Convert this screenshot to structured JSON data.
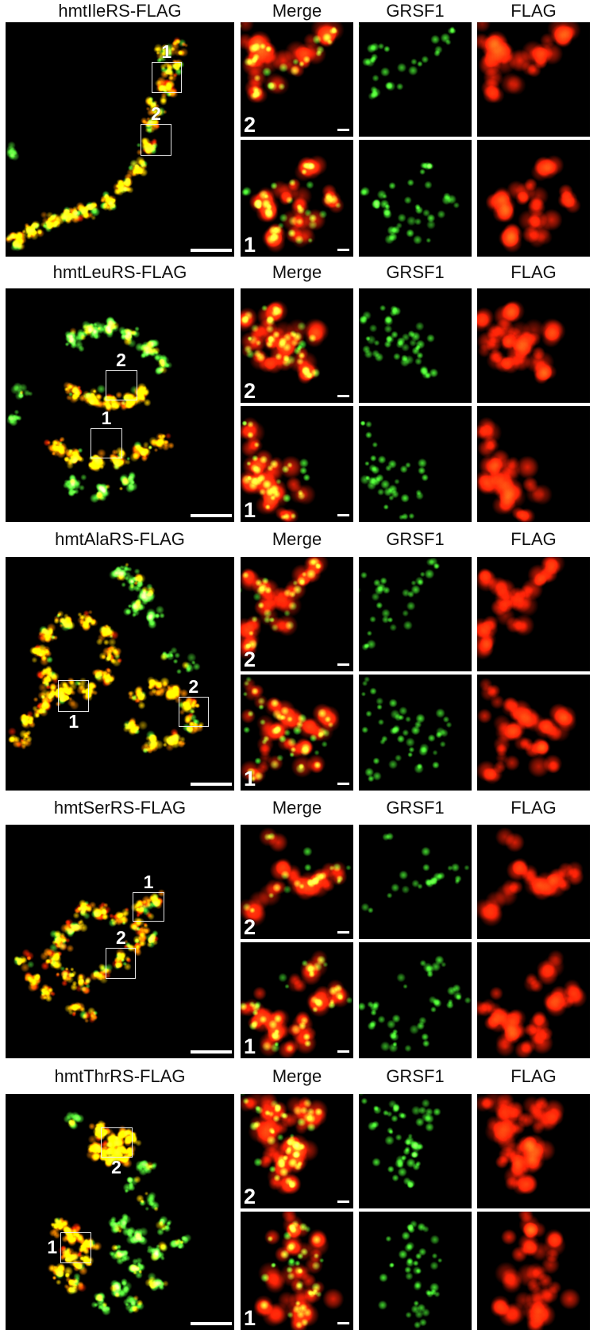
{
  "figure": {
    "type": "fluorescence-microscopy-colocalization-panel",
    "channel_headers": {
      "merge": "Merge",
      "grsf1": "GRSF1",
      "flag": "FLAG"
    },
    "colors": {
      "background": "#ffffff",
      "panel_background": "#000000",
      "header_text": "#111111",
      "grsf1_green": "#39f02a",
      "flag_red": "#ff2010",
      "colocalization_yellow": "#ffd400",
      "mito_orange": "#ff9100",
      "scale_bar": "#ffffff",
      "roi_box_outline": "#eeeeee",
      "roi_label_text": "#ffffff"
    },
    "rows": [
      {
        "title": "hmtIleRS-FLAG",
        "overview": {
          "has_scale_bar": true,
          "regions": [
            {
              "label": "1",
              "x": 63.8,
              "y": 17.0,
              "w": 13.2,
              "h": 13.3,
              "label_pos": "above"
            },
            {
              "label": "2",
              "x": 59.2,
              "y": 43.5,
              "w": 13.2,
              "h": 13.3,
              "label_pos": "above"
            }
          ]
        },
        "inset_rows": [
          {
            "region_label": "2",
            "merge_scale_bar": true
          },
          {
            "region_label": "1",
            "merge_scale_bar": true
          }
        ]
      },
      {
        "title": "hmtLeuRS-FLAG",
        "overview": {
          "has_scale_bar": true,
          "regions": [
            {
              "label": "1",
              "x": 37.3,
              "y": 59.7,
              "w": 13.6,
              "h": 13.2,
              "label_pos": "above"
            },
            {
              "label": "2",
              "x": 43.6,
              "y": 34.9,
              "w": 13.9,
              "h": 12.9,
              "label_pos": "above"
            }
          ]
        },
        "inset_rows": [
          {
            "region_label": "2",
            "merge_scale_bar": true
          },
          {
            "region_label": "1",
            "merge_scale_bar": true
          }
        ]
      },
      {
        "title": "hmtAlaRS-FLAG",
        "overview": {
          "has_scale_bar": true,
          "regions": [
            {
              "label": "1",
              "x": 23.0,
              "y": 52.7,
              "w": 13.6,
              "h": 13.6,
              "label_pos": "below"
            },
            {
              "label": "2",
              "x": 75.6,
              "y": 59.9,
              "w": 13.2,
              "h": 13.0,
              "label_pos": "above"
            }
          ]
        },
        "inset_rows": [
          {
            "region_label": "2",
            "merge_scale_bar": true
          },
          {
            "region_label": "1",
            "merge_scale_bar": true
          }
        ]
      },
      {
        "title": "hmtSerRS-FLAG",
        "overview": {
          "has_scale_bar": true,
          "regions": [
            {
              "label": "1",
              "x": 55.7,
              "y": 28.9,
              "w": 13.6,
              "h": 12.6,
              "label_pos": "above"
            },
            {
              "label": "2",
              "x": 43.9,
              "y": 52.7,
              "w": 13.2,
              "h": 13.3,
              "label_pos": "above"
            }
          ]
        },
        "inset_rows": [
          {
            "region_label": "2",
            "merge_scale_bar": true
          },
          {
            "region_label": "1",
            "merge_scale_bar": true
          }
        ]
      },
      {
        "title": "hmtThrRS-FLAG",
        "overview": {
          "has_scale_bar": true,
          "regions": [
            {
              "label": "1",
              "x": 24.0,
              "y": 58.6,
              "w": 13.6,
              "h": 13.1,
              "label_pos": "left"
            },
            {
              "label": "2",
              "x": 41.5,
              "y": 14.1,
              "w": 13.9,
              "h": 12.8,
              "label_pos": "below"
            }
          ]
        },
        "inset_rows": [
          {
            "region_label": "2",
            "merge_scale_bar": true
          },
          {
            "region_label": "1",
            "merge_scale_bar": true
          }
        ]
      }
    ]
  }
}
